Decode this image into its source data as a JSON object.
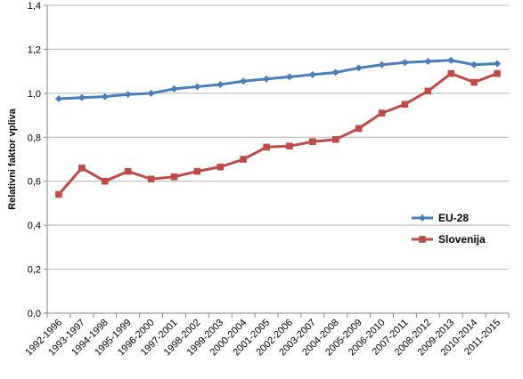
{
  "chart_data": {
    "type": "line",
    "title": "",
    "xlabel": "",
    "ylabel": "Relativni faktor vpliva",
    "ylim": [
      0,
      1.4
    ],
    "ytick_step": 0.2,
    "ytick_labels": [
      "0,0",
      "0,2",
      "0,4",
      "0,6",
      "0,8",
      "1,0",
      "1,2",
      "1,4"
    ],
    "grid": "horizontal",
    "legend_position": "right",
    "categories": [
      "1992-1996",
      "1993-1997",
      "1994-1998",
      "1995-1999",
      "1996-2000",
      "1997-2001",
      "1998-2002",
      "1999-2003",
      "2000-2004",
      "2001-2005",
      "2002-2006",
      "2003-2007",
      "2004-2008",
      "2005-2009",
      "2006-2010",
      "2007-2011",
      "2008-2012",
      "2009-2013",
      "2010-2014",
      "2011-2015"
    ],
    "series": [
      {
        "name": "EU-28",
        "color": "#4a7ebb",
        "marker": "diamond",
        "values": [
          0.975,
          0.98,
          0.985,
          0.995,
          1.0,
          1.02,
          1.03,
          1.04,
          1.055,
          1.065,
          1.075,
          1.085,
          1.095,
          1.115,
          1.13,
          1.14,
          1.145,
          1.15,
          1.13,
          1.135
        ]
      },
      {
        "name": "Slovenija",
        "color": "#be4b48",
        "marker": "square",
        "values": [
          0.54,
          0.66,
          0.6,
          0.645,
          0.61,
          0.62,
          0.645,
          0.665,
          0.7,
          0.755,
          0.76,
          0.78,
          0.79,
          0.84,
          0.91,
          0.95,
          1.01,
          1.09,
          1.05,
          1.09
        ]
      }
    ]
  }
}
